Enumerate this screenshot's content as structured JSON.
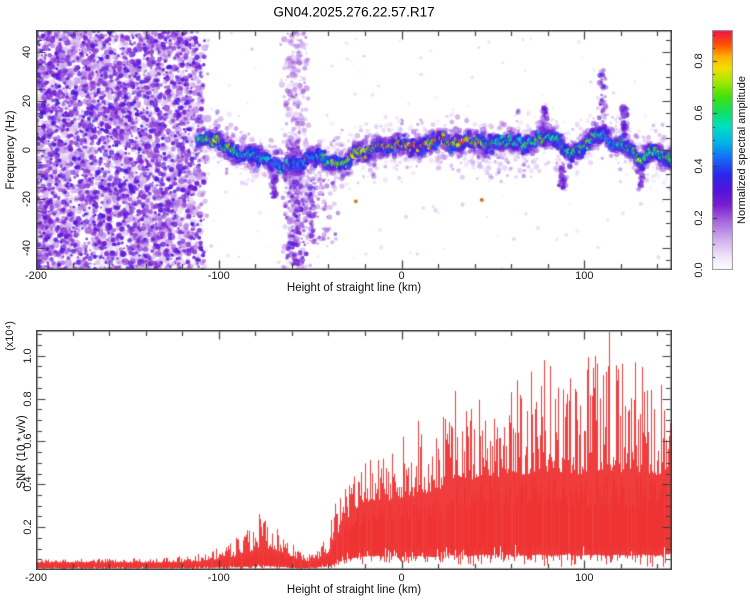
{
  "title": "GN04.2025.276.22.57.R17",
  "colors": {
    "background": "#ffffff",
    "frame": "#3c3c3c",
    "snr_line": "#ee3333",
    "text": "#111111"
  },
  "chart_data": [
    {
      "type": "heatmap",
      "panel": "doppler-spectrogram",
      "xlabel": "Height of straight line (km)",
      "ylabel": "Frequency (Hz)",
      "xlim": [
        -200,
        148
      ],
      "ylim": [
        -49,
        49
      ],
      "x_major_ticks": [
        -200,
        -100,
        0,
        100
      ],
      "x_tick_labels": [
        "-200",
        "-100",
        "0",
        "100"
      ],
      "x_minor_step": 20,
      "y_major_ticks": [
        40,
        20,
        0,
        -20,
        -40
      ],
      "y_tick_labels": [
        "40",
        "20",
        "0",
        "-20",
        "-40"
      ],
      "y_minor_step": 5,
      "grid": false,
      "colorbar": {
        "label": "Normalized spectral amplitude",
        "ticks": [
          0.0,
          0.2,
          0.4,
          0.6,
          0.8
        ],
        "tick_labels": [
          "0.0",
          "0.2",
          "0.4",
          "0.6",
          "0.8"
        ],
        "range": [
          0,
          0.92
        ],
        "colormap_stops": [
          [
            0.0,
            "#ffffff"
          ],
          [
            0.05,
            "#f2e8fb"
          ],
          [
            0.12,
            "#d4b4ef"
          ],
          [
            0.2,
            "#a86ae0"
          ],
          [
            0.27,
            "#7a1fd0"
          ],
          [
            0.33,
            "#5312dc"
          ],
          [
            0.4,
            "#2a28ec"
          ],
          [
            0.47,
            "#1470f8"
          ],
          [
            0.53,
            "#00b4e8"
          ],
          [
            0.6,
            "#00e0c0"
          ],
          [
            0.66,
            "#10e060"
          ],
          [
            0.72,
            "#40e010"
          ],
          [
            0.78,
            "#a0e800"
          ],
          [
            0.84,
            "#f0e000"
          ],
          [
            0.89,
            "#ffb000"
          ],
          [
            0.94,
            "#ff5000"
          ],
          [
            1.0,
            "#ef1050"
          ]
        ]
      },
      "regions": {
        "noise_field": {
          "x_range": [
            -200,
            -112
          ],
          "y_range": [
            -49,
            49
          ]
        },
        "noise_fade": {
          "x_range": [
            -118,
            -107
          ]
        },
        "vertical_stripe": {
          "center_km": -58,
          "width_km": 11
        },
        "sub_band_scatter": {
          "x_range": [
            -60,
            -35
          ],
          "f_range": [
            -38,
            -10
          ]
        }
      },
      "spikes": [
        {
          "km": 110,
          "f0": 5,
          "f1": 32
        },
        {
          "km": 78,
          "f0": 6,
          "f1": 17
        },
        {
          "km": 122,
          "f0": 5,
          "f1": 19
        },
        {
          "km": 131,
          "f0": -16,
          "f1": -5
        },
        {
          "km": 88,
          "f0": -15,
          "f1": -6
        },
        {
          "km": -70,
          "f0": -20,
          "f1": -10
        },
        {
          "km": -49,
          "f0": -38,
          "f1": -12
        }
      ],
      "hot_outliers": [
        {
          "km": -25,
          "f": -21,
          "value": 0.89
        },
        {
          "km": 44,
          "f": -20.5,
          "value": 0.9
        }
      ],
      "signal_band": [
        [
          -111,
          5,
          0.6
        ],
        [
          -105,
          3,
          0.68
        ],
        [
          -100,
          4,
          0.72
        ],
        [
          -96,
          2,
          0.66
        ],
        [
          -92,
          1,
          0.7
        ],
        [
          -88,
          -1,
          0.62
        ],
        [
          -84,
          -3,
          0.6
        ],
        [
          -80,
          -5,
          0.62
        ],
        [
          -76,
          -4,
          0.58
        ],
        [
          -72,
          -6,
          0.6
        ],
        [
          -68,
          -7,
          0.56
        ],
        [
          -64,
          -8,
          0.54
        ],
        [
          -60,
          -9,
          0.52
        ],
        [
          -56,
          -7,
          0.55
        ],
        [
          -52,
          -8,
          0.56
        ],
        [
          -48,
          -7,
          0.58
        ],
        [
          -44,
          -6,
          0.62
        ],
        [
          -40,
          -5,
          0.66
        ],
        [
          -36,
          -4,
          0.7
        ],
        [
          -32,
          -3,
          0.74
        ],
        [
          -28,
          -3,
          0.82
        ],
        [
          -24,
          -2,
          0.86
        ],
        [
          -20,
          -2,
          0.88
        ],
        [
          -16,
          -1,
          0.84
        ],
        [
          -12,
          0,
          0.88
        ],
        [
          -8,
          1,
          0.9
        ],
        [
          -4,
          1,
          0.86
        ],
        [
          0,
          2,
          0.88
        ],
        [
          4,
          2,
          0.92
        ],
        [
          8,
          2,
          0.88
        ],
        [
          12,
          3,
          0.9
        ],
        [
          16,
          2,
          0.86
        ],
        [
          20,
          3,
          0.88
        ],
        [
          24,
          2,
          0.84
        ],
        [
          28,
          2,
          0.78
        ],
        [
          32,
          1,
          0.74
        ],
        [
          36,
          2,
          0.72
        ],
        [
          40,
          2,
          0.76
        ],
        [
          44,
          1,
          0.7
        ],
        [
          48,
          0,
          0.68
        ],
        [
          52,
          -1,
          0.66
        ],
        [
          56,
          0,
          0.64
        ],
        [
          60,
          0,
          0.66
        ],
        [
          64,
          1,
          0.64
        ],
        [
          68,
          2,
          0.66
        ],
        [
          72,
          3,
          0.64
        ],
        [
          76,
          5,
          0.62
        ],
        [
          80,
          6,
          0.6
        ],
        [
          84,
          3,
          0.62
        ],
        [
          88,
          0,
          0.6
        ],
        [
          92,
          -2,
          0.62
        ],
        [
          96,
          0,
          0.64
        ],
        [
          100,
          2,
          0.62
        ],
        [
          104,
          5,
          0.64
        ],
        [
          108,
          8,
          0.6
        ],
        [
          112,
          7,
          0.58
        ],
        [
          116,
          5,
          0.62
        ],
        [
          120,
          4,
          0.64
        ],
        [
          124,
          1,
          0.6
        ],
        [
          128,
          -2,
          0.62
        ],
        [
          132,
          -4,
          0.6
        ],
        [
          136,
          -2,
          0.62
        ],
        [
          140,
          -1,
          0.64
        ],
        [
          144,
          -2,
          0.6
        ],
        [
          148,
          -3,
          0.62
        ]
      ]
    },
    {
      "type": "line",
      "panel": "snr-profile",
      "xlabel": "Height of straight line (km)",
      "ylabel": "SNR (10 * v/v)",
      "y_scale": "(x10⁴)",
      "xlim": [
        -200,
        148
      ],
      "ylim": [
        0,
        1.12
      ],
      "x_major_ticks": [
        -200,
        -100,
        0,
        100
      ],
      "x_tick_labels": [
        "-200",
        "-100",
        "0",
        "100"
      ],
      "x_minor_step": 20,
      "y_major_ticks": [
        0.2,
        0.4,
        0.6,
        0.8,
        1.0
      ],
      "y_tick_labels": [
        "0.2",
        "0.4",
        "0.6",
        "0.8",
        "1.0"
      ],
      "y_minor_step": 0.05,
      "grid": false,
      "line_color": "#ee3333",
      "envelope_format": [
        "km",
        "lower",
        "dense_top",
        "spike_top"
      ],
      "envelope": [
        [
          -200,
          0.015,
          0.035,
          0.05
        ],
        [
          -160,
          0.015,
          0.035,
          0.055
        ],
        [
          -130,
          0.015,
          0.035,
          0.06
        ],
        [
          -110,
          0.015,
          0.04,
          0.07
        ],
        [
          -100,
          0.02,
          0.05,
          0.1
        ],
        [
          -92,
          0.02,
          0.06,
          0.14
        ],
        [
          -85,
          0.025,
          0.08,
          0.18
        ],
        [
          -78,
          0.03,
          0.1,
          0.26
        ],
        [
          -72,
          0.03,
          0.1,
          0.28
        ],
        [
          -68,
          0.025,
          0.09,
          0.22
        ],
        [
          -62,
          0.02,
          0.07,
          0.15
        ],
        [
          -57,
          0.015,
          0.05,
          0.09
        ],
        [
          -52,
          0.015,
          0.04,
          0.07
        ],
        [
          -47,
          0.02,
          0.05,
          0.09
        ],
        [
          -43,
          0.025,
          0.06,
          0.12
        ],
        [
          -40,
          0.03,
          0.08,
          0.18
        ],
        [
          -37,
          0.05,
          0.14,
          0.3
        ],
        [
          -33,
          0.07,
          0.2,
          0.38
        ],
        [
          -28,
          0.09,
          0.26,
          0.45
        ],
        [
          -23,
          0.1,
          0.3,
          0.48
        ],
        [
          -18,
          0.11,
          0.32,
          0.52
        ],
        [
          -13,
          0.11,
          0.33,
          0.55
        ],
        [
          -8,
          0.1,
          0.32,
          0.5
        ],
        [
          -3,
          0.11,
          0.34,
          0.58
        ],
        [
          3,
          0.1,
          0.33,
          0.6
        ],
        [
          10,
          0.11,
          0.36,
          0.65
        ],
        [
          17,
          0.1,
          0.35,
          0.6
        ],
        [
          24,
          0.11,
          0.4,
          0.75
        ],
        [
          30,
          0.12,
          0.44,
          0.85
        ],
        [
          38,
          0.11,
          0.42,
          0.8
        ],
        [
          45,
          0.12,
          0.45,
          0.88
        ],
        [
          52,
          0.11,
          0.43,
          0.82
        ],
        [
          60,
          0.12,
          0.46,
          0.9
        ],
        [
          68,
          0.11,
          0.44,
          0.95
        ],
        [
          75,
          0.12,
          0.47,
          0.92
        ],
        [
          82,
          0.11,
          0.45,
          1.0
        ],
        [
          90,
          0.12,
          0.46,
          0.88
        ],
        [
          97,
          0.11,
          0.44,
          0.96
        ],
        [
          104,
          0.12,
          0.47,
          1.02
        ],
        [
          112,
          0.11,
          0.46,
          1.08
        ],
        [
          118,
          0.12,
          0.45,
          0.98
        ],
        [
          125,
          0.11,
          0.44,
          0.92
        ],
        [
          132,
          0.12,
          0.46,
          0.96
        ],
        [
          140,
          0.11,
          0.44,
          0.98
        ],
        [
          148,
          0.13,
          0.45,
          0.95
        ]
      ]
    }
  ]
}
